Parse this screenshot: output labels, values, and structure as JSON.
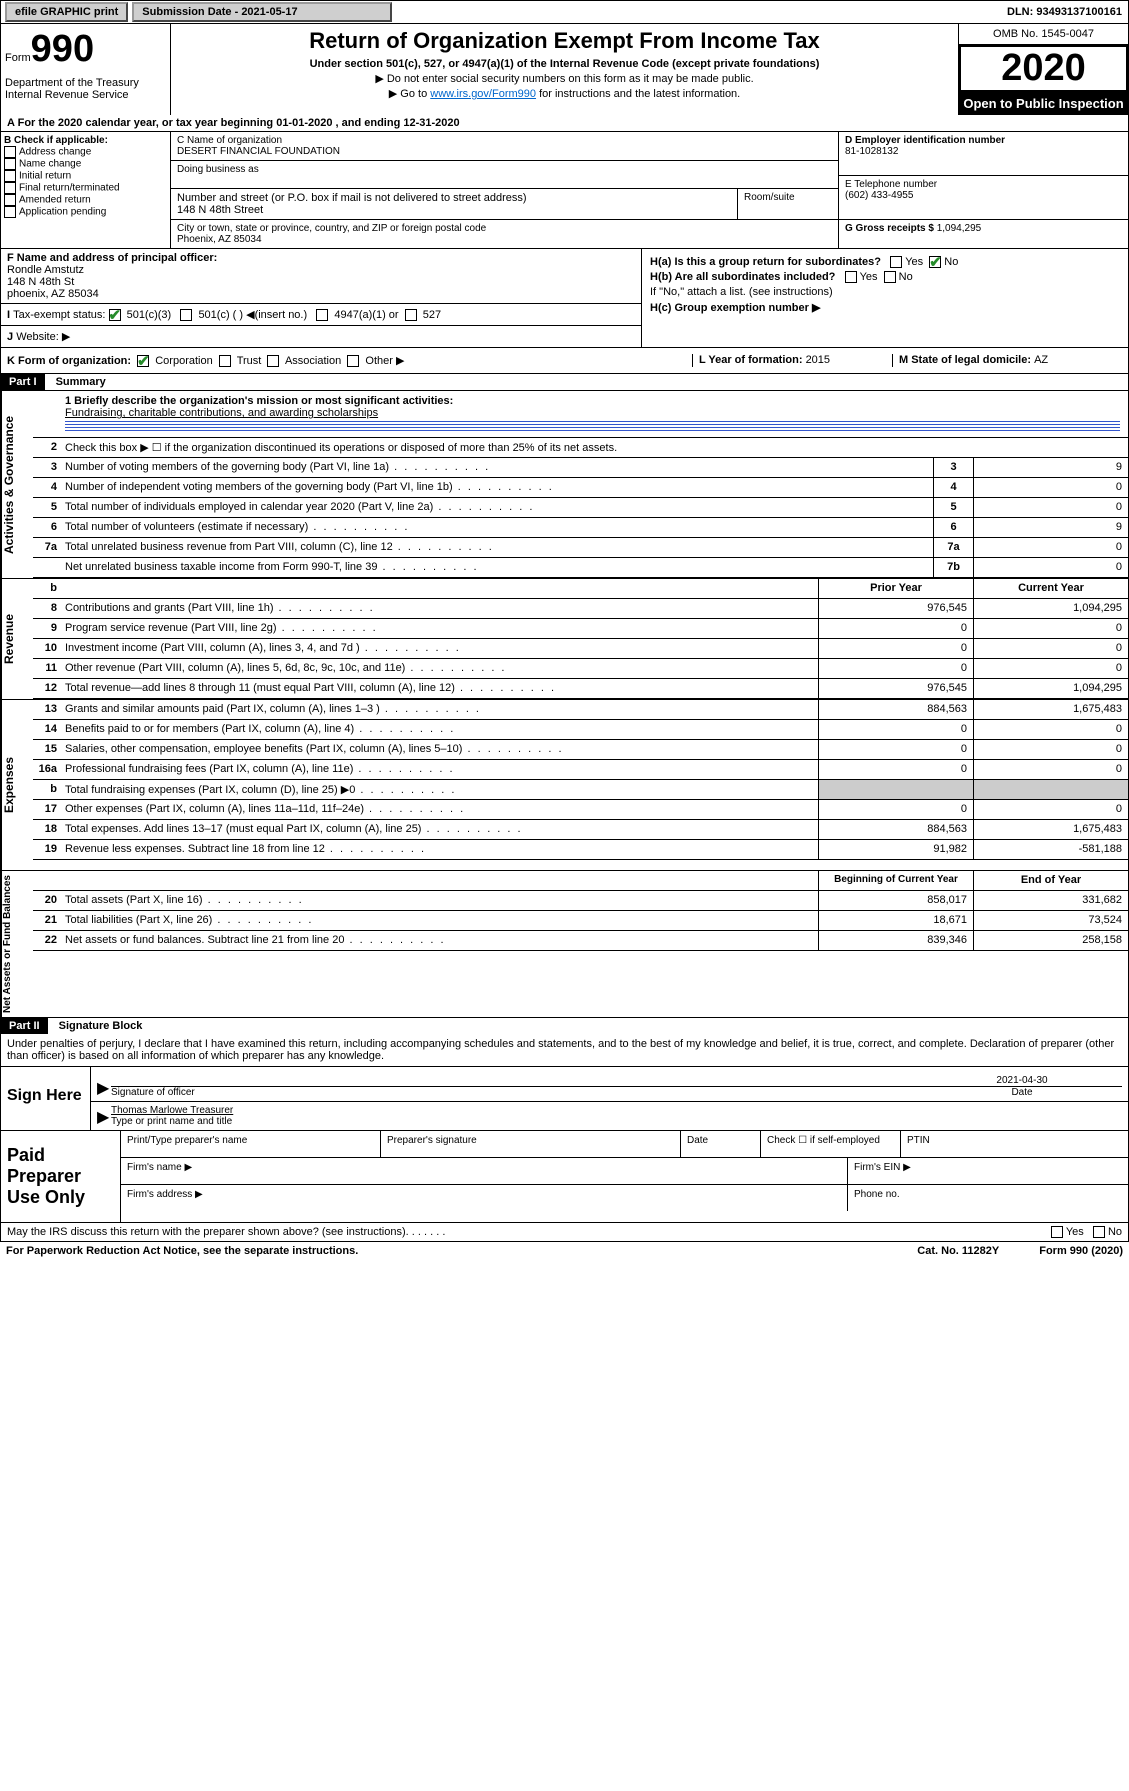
{
  "topbar": {
    "efile": "efile GRAPHIC print",
    "sub_label": "Submission Date - 2021-05-17",
    "dln": "DLN: 93493137100161"
  },
  "header": {
    "form_word": "Form",
    "form_num": "990",
    "dept": "Department of the Treasury\nInternal Revenue Service",
    "title": "Return of Organization Exempt From Income Tax",
    "subtitle": "Under section 501(c), 527, or 4947(a)(1) of the Internal Revenue Code (except private foundations)",
    "note1": "▶ Do not enter social security numbers on this form as it may be made public.",
    "note2_pre": "▶ Go to ",
    "note2_link": "www.irs.gov/Form990",
    "note2_post": " for instructions and the latest information.",
    "omb": "OMB No. 1545-0047",
    "year": "2020",
    "open": "Open to Public Inspection"
  },
  "period": "For the 2020 calendar year, or tax year beginning 01-01-2020    , and ending 12-31-2020",
  "blockB": {
    "header": "B Check if applicable:",
    "opts": [
      "Address change",
      "Name change",
      "Initial return",
      "Final return/terminated",
      "Amended return",
      "Application pending"
    ]
  },
  "blockC": {
    "name_label": "C Name of organization",
    "name": "DESERT FINANCIAL FOUNDATION",
    "dba_label": "Doing business as",
    "addr_label": "Number and street (or P.O. box if mail is not delivered to street address)",
    "room_label": "Room/suite",
    "addr": "148 N 48th Street",
    "city_label": "City or town, state or province, country, and ZIP or foreign postal code",
    "city": "Phoenix, AZ  85034"
  },
  "blockD": {
    "label": "D Employer identification number",
    "ein": "81-1028132",
    "e_label": "E Telephone number",
    "phone": "(602) 433-4955",
    "g_label": "G Gross receipts $ ",
    "g_val": "1,094,295"
  },
  "blockF": {
    "label": "F  Name and address of principal officer:",
    "name": "Rondle Amstutz",
    "addr1": "148 N 48th St",
    "addr2": "phoenix, AZ  85034"
  },
  "blockH": {
    "ha": "H(a)  Is this a group return for subordinates?",
    "hb": "H(b)  Are all subordinates included?",
    "hb_note": "If \"No,\" attach a list. (see instructions)",
    "hc": "H(c)  Group exemption number ▶",
    "yes": "Yes",
    "no": "No"
  },
  "blockI": {
    "label": "Tax-exempt status:",
    "c3": "501(c)(3)",
    "c": "501(c) (   ) ◀(insert no.)",
    "a1": "4947(a)(1) or",
    "527": "527"
  },
  "blockJ": "Website: ▶",
  "blockK": "K Form of organization:",
  "blockK_opts": {
    "corp": "Corporation",
    "trust": "Trust",
    "assoc": "Association",
    "other": "Other ▶"
  },
  "blockL": {
    "label": "L Year of formation: ",
    "val": "2015"
  },
  "blockM": {
    "label": "M State of legal domicile: ",
    "val": "AZ"
  },
  "partI": {
    "header": "Part I",
    "title": "Summary",
    "q1_label": "1  Briefly describe the organization's mission or most significant activities:",
    "q1_text": "Fundraising, charitable contributions, and awarding scholarships",
    "q2": "Check this box ▶ ☐  if the organization discontinued its operations or disposed of more than 25% of its net assets.",
    "rows_top": [
      {
        "n": "3",
        "t": "Number of voting members of the governing body (Part VI, line 1a)",
        "box": "3",
        "v": "9"
      },
      {
        "n": "4",
        "t": "Number of independent voting members of the governing body (Part VI, line 1b)",
        "box": "4",
        "v": "0"
      },
      {
        "n": "5",
        "t": "Total number of individuals employed in calendar year 2020 (Part V, line 2a)",
        "box": "5",
        "v": "0"
      },
      {
        "n": "6",
        "t": "Total number of volunteers (estimate if necessary)",
        "box": "6",
        "v": "9"
      },
      {
        "n": "7a",
        "t": "Total unrelated business revenue from Part VIII, column (C), line 12",
        "box": "7a",
        "v": "0"
      },
      {
        "n": "",
        "t": "Net unrelated business taxable income from Form 990-T, line 39",
        "box": "7b",
        "v": "0"
      }
    ],
    "prior_hdr": "Prior Year",
    "curr_hdr": "Current Year",
    "revenue": [
      {
        "n": "8",
        "t": "Contributions and grants (Part VIII, line 1h)",
        "p": "976,545",
        "c": "1,094,295"
      },
      {
        "n": "9",
        "t": "Program service revenue (Part VIII, line 2g)",
        "p": "0",
        "c": "0"
      },
      {
        "n": "10",
        "t": "Investment income (Part VIII, column (A), lines 3, 4, and 7d )",
        "p": "0",
        "c": "0"
      },
      {
        "n": "11",
        "t": "Other revenue (Part VIII, column (A), lines 5, 6d, 8c, 9c, 10c, and 11e)",
        "p": "0",
        "c": "0"
      },
      {
        "n": "12",
        "t": "Total revenue—add lines 8 through 11 (must equal Part VIII, column (A), line 12)",
        "p": "976,545",
        "c": "1,094,295"
      }
    ],
    "expenses": [
      {
        "n": "13",
        "t": "Grants and similar amounts paid (Part IX, column (A), lines 1–3 )",
        "p": "884,563",
        "c": "1,675,483"
      },
      {
        "n": "14",
        "t": "Benefits paid to or for members (Part IX, column (A), line 4)",
        "p": "0",
        "c": "0"
      },
      {
        "n": "15",
        "t": "Salaries, other compensation, employee benefits (Part IX, column (A), lines 5–10)",
        "p": "0",
        "c": "0"
      },
      {
        "n": "16a",
        "t": "Professional fundraising fees (Part IX, column (A), line 11e)",
        "p": "0",
        "c": "0"
      },
      {
        "n": "b",
        "t": "Total fundraising expenses (Part IX, column (D), line 25) ▶0",
        "p": "grey",
        "c": "grey"
      },
      {
        "n": "17",
        "t": "Other expenses (Part IX, column (A), lines 11a–11d, 11f–24e)",
        "p": "0",
        "c": "0"
      },
      {
        "n": "18",
        "t": "Total expenses. Add lines 13–17 (must equal Part IX, column (A), line 25)",
        "p": "884,563",
        "c": "1,675,483"
      },
      {
        "n": "19",
        "t": "Revenue less expenses. Subtract line 18 from line 12",
        "p": "91,982",
        "c": "-581,188"
      }
    ],
    "begin_hdr": "Beginning of Current Year",
    "end_hdr": "End of Year",
    "netassets": [
      {
        "n": "20",
        "t": "Total assets (Part X, line 16)",
        "p": "858,017",
        "c": "331,682"
      },
      {
        "n": "21",
        "t": "Total liabilities (Part X, line 26)",
        "p": "18,671",
        "c": "73,524"
      },
      {
        "n": "22",
        "t": "Net assets or fund balances. Subtract line 21 from line 20",
        "p": "839,346",
        "c": "258,158"
      }
    ]
  },
  "partII": {
    "header": "Part II",
    "title": "Signature Block",
    "perjury": "Under penalties of perjury, I declare that I have examined this return, including accompanying schedules and statements, and to the best of my knowledge and belief, it is true, correct, and complete. Declaration of preparer (other than officer) is based on all information of which preparer has any knowledge.",
    "sign_here": "Sign Here",
    "sig_officer": "Signature of officer",
    "sig_date": "2021-04-30",
    "date_label": "Date",
    "name_title": "Thomas Marlowe  Treasurer",
    "name_label": "Type or print name and title",
    "paid": "Paid Preparer Use Only",
    "prep_name": "Print/Type preparer's name",
    "prep_sig": "Preparer's signature",
    "prep_date": "Date",
    "self_emp": "Check ☐ if self-employed",
    "ptin": "PTIN",
    "firm_name": "Firm's name   ▶",
    "firm_ein": "Firm's EIN ▶",
    "firm_addr": "Firm's address ▶",
    "phone": "Phone no.",
    "discuss": "May the IRS discuss this return with the preparer shown above? (see instructions)",
    "yes": "Yes",
    "no": "No"
  },
  "footer": {
    "pra": "For Paperwork Reduction Act Notice, see the separate instructions.",
    "cat": "Cat. No. 11282Y",
    "form": "Form 990 (2020)"
  }
}
